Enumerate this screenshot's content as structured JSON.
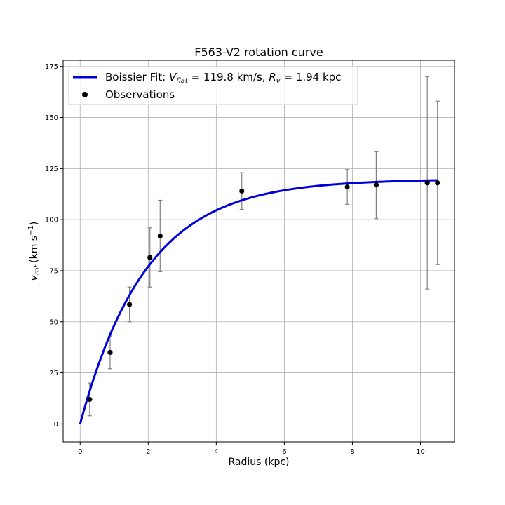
{
  "chart_data": {
    "type": "scatter",
    "title": "F563-V2 rotation curve",
    "xlabel": "Radius (kpc)",
    "ylabel_main": "v",
    "ylabel_sub": "rot",
    "ylabel_unit": "(km s",
    "ylabel_exp": "−1",
    "ylabel_close": ")",
    "xlim": [
      -0.5,
      11.0
    ],
    "ylim": [
      -8.8,
      178
    ],
    "x_ticks": [
      0,
      2,
      4,
      6,
      8,
      10
    ],
    "x_tick_labels": [
      "0",
      "2",
      "4",
      "6",
      "8",
      "10"
    ],
    "y_ticks": [
      0,
      25,
      50,
      75,
      100,
      125,
      150,
      175
    ],
    "y_tick_labels": [
      "0",
      "25",
      "50",
      "75",
      "100",
      "125",
      "150",
      "175"
    ],
    "grid": true,
    "legend_position": "top-left",
    "fit": {
      "name_prefix": "Boissier Fit: ",
      "name_vflat_sym": "V",
      "name_vflat_sub": "flat",
      "name_vflat_val": " = 119.8 km/s, ",
      "name_rv_sym": "R",
      "name_rv_sub": "v",
      "name_rv_val": " = 1.94 kpc",
      "v_flat": 119.8,
      "r_v": 1.94,
      "x_range": [
        0,
        10.5
      ],
      "color": "#0000dd"
    },
    "observations": {
      "name": "Observations",
      "color": "#000000",
      "errorbar_color": "#808080",
      "x": [
        0.28,
        0.88,
        1.45,
        2.05,
        2.35,
        4.75,
        7.85,
        8.7,
        10.2,
        10.5
      ],
      "y": [
        12,
        35,
        58.5,
        81.5,
        92,
        114,
        116,
        117,
        118,
        118
      ],
      "yerr": [
        8,
        8,
        8.5,
        14.5,
        17.5,
        9,
        8.5,
        16.5,
        52,
        40
      ]
    }
  }
}
